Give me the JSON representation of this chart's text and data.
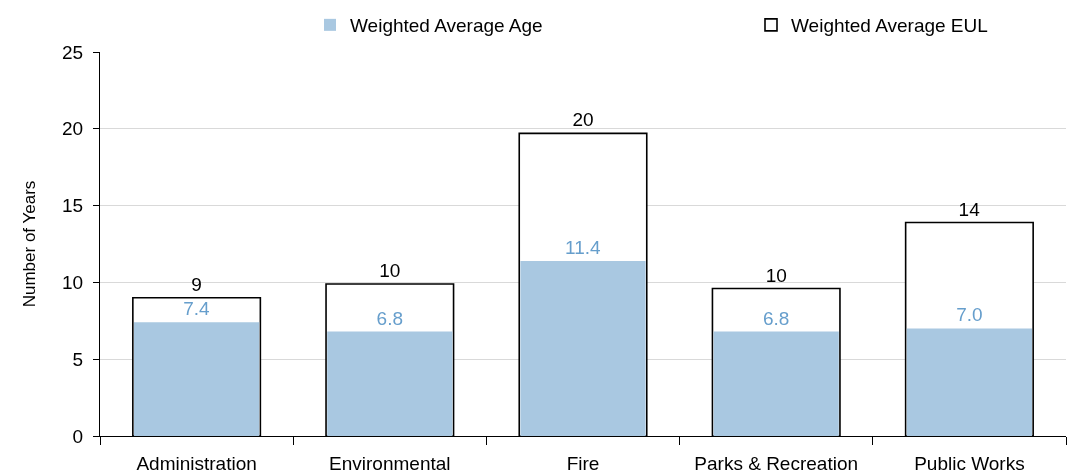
{
  "chart_data": {
    "type": "bar",
    "ylabel": "Number of Years",
    "categories": [
      "Administration",
      "Environmental",
      "Fire",
      "Parks & Recreation",
      "Public Works"
    ],
    "series": [
      {
        "name": "Weighted Average Age",
        "color": "#a9c8e1",
        "values": [
          7.4,
          6.8,
          11.4,
          6.8,
          7.0
        ],
        "value_labels": [
          "7.4",
          "6.8",
          "11.4",
          "6.8",
          "7.0"
        ]
      },
      {
        "name": "Weighted Average EUL",
        "color": "#ffffff",
        "values": [
          9.0,
          9.9,
          19.7,
          9.6,
          13.9
        ],
        "value_labels": [
          "9",
          "10",
          "20",
          "10",
          "14"
        ]
      }
    ],
    "ylim": [
      0,
      25
    ],
    "yticks": [
      0,
      5,
      10,
      15,
      20,
      25
    ],
    "grid": "y",
    "legend": "top"
  }
}
